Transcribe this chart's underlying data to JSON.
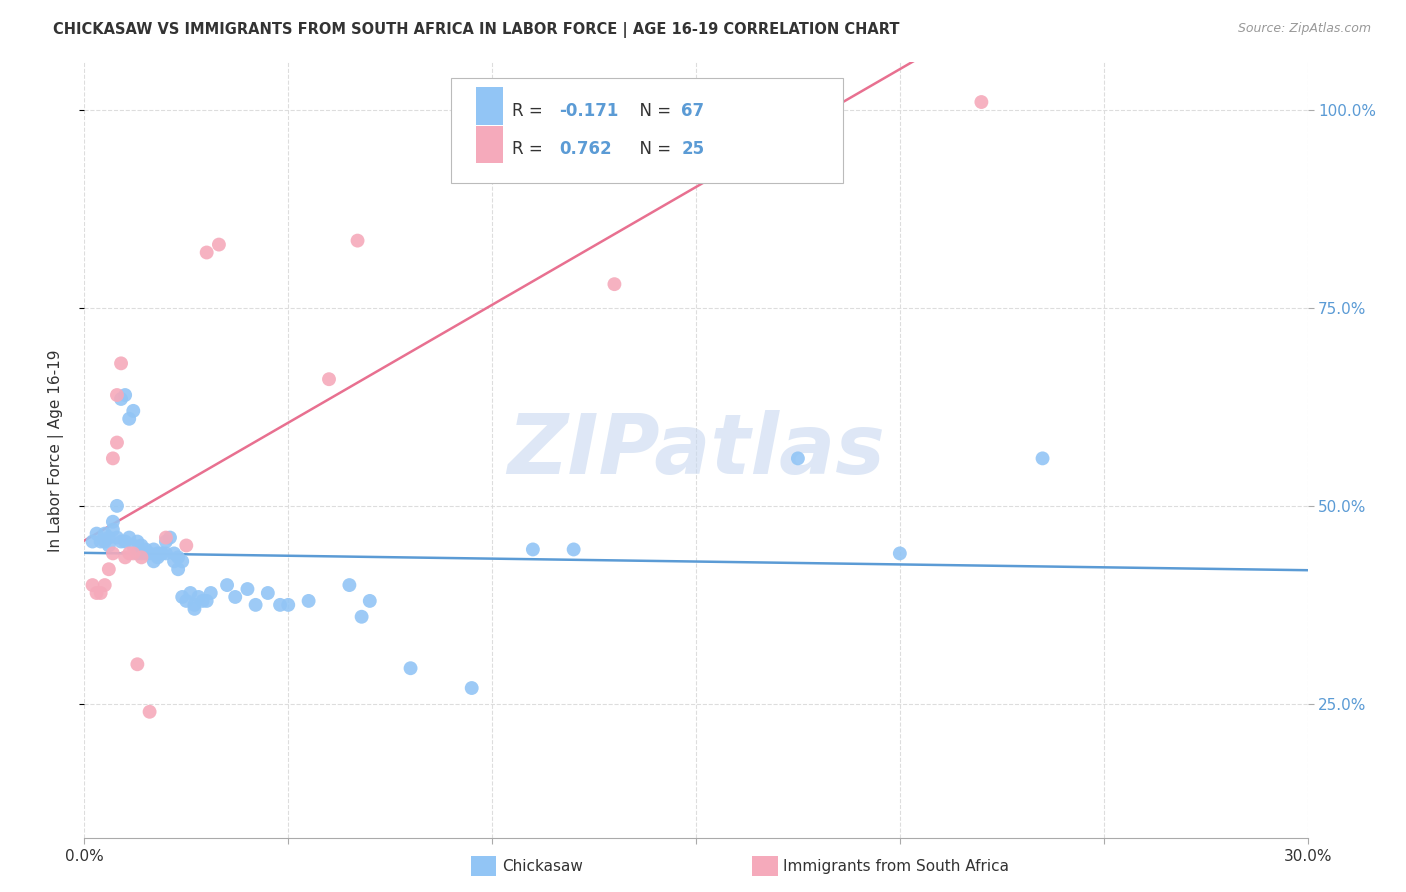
{
  "title": "CHICKASAW VS IMMIGRANTS FROM SOUTH AFRICA IN LABOR FORCE | AGE 16-19 CORRELATION CHART",
  "source": "Source: ZipAtlas.com",
  "ylabel": "In Labor Force | Age 16-19",
  "xlim": [
    0.0,
    0.3
  ],
  "ylim": [
    0.08,
    1.06
  ],
  "xtick_positions": [
    0.0,
    0.05,
    0.1,
    0.15,
    0.2,
    0.25,
    0.3
  ],
  "xticklabels": [
    "0.0%",
    "",
    "",
    "",
    "",
    "",
    "30.0%"
  ],
  "ytick_positions": [
    0.25,
    0.5,
    0.75,
    1.0
  ],
  "ytick_labels": [
    "25.0%",
    "50.0%",
    "75.0%",
    "100.0%"
  ],
  "legend_r1_label": "R = ",
  "legend_r1_val": "-0.171",
  "legend_n1_label": "  N = ",
  "legend_n1_val": "67",
  "legend_r2_val": "0.762",
  "legend_n2_val": "25",
  "blue_color": "#92C5F5",
  "pink_color": "#F5AABB",
  "blue_line_color": "#5B9BD5",
  "pink_line_color": "#E87090",
  "text_color": "#333333",
  "blue_text_color": "#5B9BD5",
  "watermark": "ZIPatlas",
  "watermark_color": "#C8D8F0",
  "grid_color": "#DDDDDD",
  "bottom_label_blue": "Chickasaw",
  "bottom_label_pink": "Immigrants from South Africa",
  "blue_dots": [
    [
      0.002,
      0.455
    ],
    [
      0.003,
      0.465
    ],
    [
      0.004,
      0.455
    ],
    [
      0.005,
      0.465
    ],
    [
      0.005,
      0.455
    ],
    [
      0.006,
      0.46
    ],
    [
      0.006,
      0.45
    ],
    [
      0.007,
      0.47
    ],
    [
      0.007,
      0.48
    ],
    [
      0.008,
      0.5
    ],
    [
      0.008,
      0.46
    ],
    [
      0.009,
      0.455
    ],
    [
      0.009,
      0.635
    ],
    [
      0.01,
      0.64
    ],
    [
      0.01,
      0.455
    ],
    [
      0.011,
      0.46
    ],
    [
      0.011,
      0.61
    ],
    [
      0.012,
      0.62
    ],
    [
      0.012,
      0.45
    ],
    [
      0.013,
      0.455
    ],
    [
      0.013,
      0.44
    ],
    [
      0.014,
      0.45
    ],
    [
      0.014,
      0.44
    ],
    [
      0.015,
      0.445
    ],
    [
      0.015,
      0.44
    ],
    [
      0.016,
      0.44
    ],
    [
      0.017,
      0.445
    ],
    [
      0.017,
      0.43
    ],
    [
      0.018,
      0.44
    ],
    [
      0.018,
      0.435
    ],
    [
      0.019,
      0.44
    ],
    [
      0.019,
      0.44
    ],
    [
      0.02,
      0.44
    ],
    [
      0.02,
      0.455
    ],
    [
      0.021,
      0.46
    ],
    [
      0.022,
      0.44
    ],
    [
      0.022,
      0.43
    ],
    [
      0.023,
      0.435
    ],
    [
      0.023,
      0.42
    ],
    [
      0.024,
      0.43
    ],
    [
      0.024,
      0.385
    ],
    [
      0.025,
      0.38
    ],
    [
      0.026,
      0.39
    ],
    [
      0.027,
      0.375
    ],
    [
      0.027,
      0.37
    ],
    [
      0.028,
      0.385
    ],
    [
      0.029,
      0.38
    ],
    [
      0.03,
      0.38
    ],
    [
      0.031,
      0.39
    ],
    [
      0.035,
      0.4
    ],
    [
      0.037,
      0.385
    ],
    [
      0.04,
      0.395
    ],
    [
      0.042,
      0.375
    ],
    [
      0.045,
      0.39
    ],
    [
      0.048,
      0.375
    ],
    [
      0.05,
      0.375
    ],
    [
      0.055,
      0.38
    ],
    [
      0.065,
      0.4
    ],
    [
      0.068,
      0.36
    ],
    [
      0.07,
      0.38
    ],
    [
      0.08,
      0.295
    ],
    [
      0.095,
      0.27
    ],
    [
      0.11,
      0.445
    ],
    [
      0.12,
      0.445
    ],
    [
      0.175,
      0.56
    ],
    [
      0.2,
      0.44
    ],
    [
      0.235,
      0.56
    ]
  ],
  "pink_dots": [
    [
      0.002,
      0.4
    ],
    [
      0.003,
      0.39
    ],
    [
      0.004,
      0.39
    ],
    [
      0.005,
      0.4
    ],
    [
      0.006,
      0.42
    ],
    [
      0.007,
      0.44
    ],
    [
      0.007,
      0.56
    ],
    [
      0.008,
      0.58
    ],
    [
      0.008,
      0.64
    ],
    [
      0.009,
      0.68
    ],
    [
      0.01,
      0.435
    ],
    [
      0.011,
      0.44
    ],
    [
      0.012,
      0.44
    ],
    [
      0.013,
      0.3
    ],
    [
      0.014,
      0.435
    ],
    [
      0.016,
      0.24
    ],
    [
      0.02,
      0.46
    ],
    [
      0.025,
      0.45
    ],
    [
      0.03,
      0.82
    ],
    [
      0.033,
      0.83
    ],
    [
      0.06,
      0.66
    ],
    [
      0.067,
      0.835
    ],
    [
      0.13,
      0.78
    ],
    [
      0.16,
      0.99
    ],
    [
      0.22,
      1.01
    ]
  ]
}
